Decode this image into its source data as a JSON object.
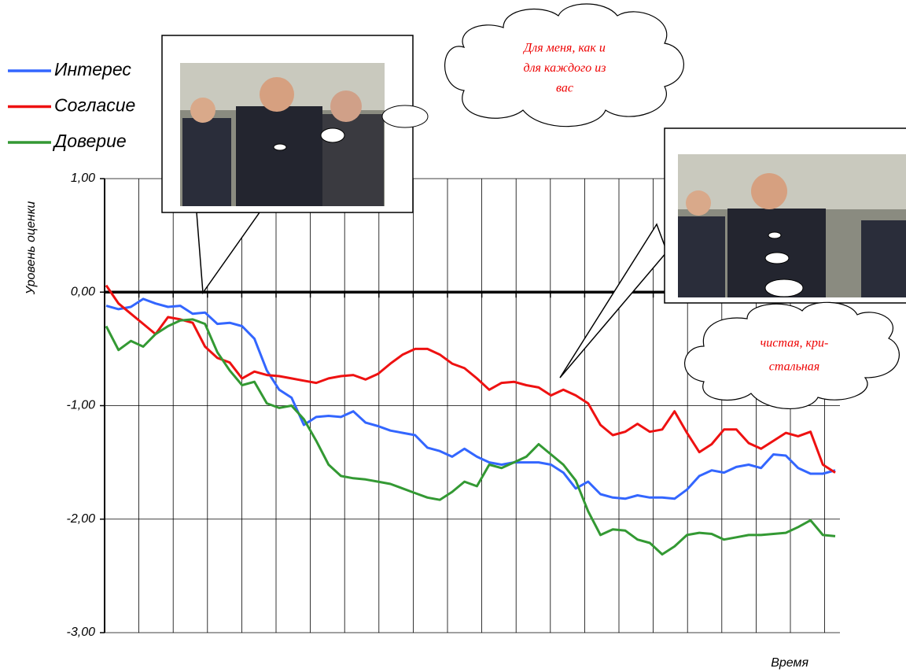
{
  "chart_data": {
    "type": "line",
    "y_label": "Уровень оценки",
    "x_label": "Время",
    "categories": [
      null,
      null,
      null,
      null,
      null,
      null,
      null,
      null,
      null,
      null,
      null,
      null,
      null,
      null,
      null,
      null,
      null,
      null,
      null,
      null,
      null,
      null,
      null,
      null,
      null,
      null,
      null,
      null,
      null,
      null,
      null,
      null,
      null,
      null,
      null,
      null,
      null,
      null,
      null,
      null,
      null,
      null,
      null,
      null,
      null,
      null,
      null,
      null,
      null,
      null,
      null,
      null,
      null,
      null,
      null,
      null,
      null,
      null,
      null,
      null
    ],
    "series": [
      {
        "name": "Интерес",
        "color": "#3366ff",
        "values": [
          -0.12,
          -0.15,
          -0.13,
          -0.06,
          -0.1,
          -0.13,
          -0.12,
          -0.19,
          -0.18,
          -0.28,
          -0.27,
          -0.3,
          -0.41,
          -0.69,
          -0.86,
          -0.93,
          -1.17,
          -1.1,
          -1.09,
          -1.1,
          -1.05,
          -1.15,
          -1.18,
          -1.22,
          -1.24,
          -1.26,
          -1.37,
          -1.4,
          -1.45,
          -1.38,
          -1.45,
          -1.5,
          -1.52,
          -1.5,
          -1.5,
          -1.5,
          -1.52,
          -1.59,
          -1.73,
          -1.67,
          -1.78,
          -1.81,
          -1.82,
          -1.79,
          -1.81,
          -1.81,
          -1.82,
          -1.74,
          -1.62,
          -1.57,
          -1.59,
          -1.54,
          -1.52,
          -1.55,
          -1.43,
          -1.44,
          -1.55,
          -1.6,
          -1.6,
          -1.57
        ]
      },
      {
        "name": "Согласие",
        "color": "#ee1111",
        "values": [
          0.06,
          -0.1,
          -0.19,
          -0.28,
          -0.37,
          -0.22,
          -0.24,
          -0.27,
          -0.48,
          -0.58,
          -0.62,
          -0.76,
          -0.7,
          -0.73,
          -0.74,
          -0.76,
          -0.78,
          -0.8,
          -0.76,
          -0.74,
          -0.73,
          -0.77,
          -0.72,
          -0.63,
          -0.55,
          -0.5,
          -0.5,
          -0.55,
          -0.63,
          -0.67,
          -0.76,
          -0.86,
          -0.8,
          -0.79,
          -0.82,
          -0.84,
          -0.91,
          -0.86,
          -0.91,
          -0.98,
          -1.17,
          -1.26,
          -1.23,
          -1.16,
          -1.23,
          -1.21,
          -1.05,
          -1.24,
          -1.41,
          -1.34,
          -1.21,
          -1.21,
          -1.33,
          -1.38,
          -1.31,
          -1.24,
          -1.27,
          -1.23,
          -1.52,
          -1.59
        ]
      },
      {
        "name": "Доверие",
        "color": "#339933",
        "values": [
          -0.3,
          -0.51,
          -0.43,
          -0.48,
          -0.37,
          -0.3,
          -0.25,
          -0.24,
          -0.28,
          -0.53,
          -0.69,
          -0.82,
          -0.79,
          -0.98,
          -1.02,
          -1.0,
          -1.12,
          -1.31,
          -1.52,
          -1.62,
          -1.64,
          -1.65,
          -1.67,
          -1.69,
          -1.73,
          -1.77,
          -1.81,
          -1.83,
          -1.76,
          -1.67,
          -1.71,
          -1.52,
          -1.55,
          -1.5,
          -1.45,
          -1.34,
          -1.43,
          -1.52,
          -1.66,
          -1.93,
          -2.14,
          -2.09,
          -2.1,
          -2.18,
          -2.21,
          -2.31,
          -2.24,
          -2.14,
          -2.12,
          -2.13,
          -2.18,
          -2.16,
          -2.14,
          -2.14,
          -2.13,
          -2.12,
          -2.07,
          -2.01,
          -2.14,
          -2.15
        ]
      }
    ],
    "ylim": [
      -3,
      1
    ],
    "yticks": [
      {
        "value": -3,
        "label": "-3,00"
      },
      {
        "value": -2,
        "label": "-2,00"
      },
      {
        "value": -1,
        "label": "-1,00"
      },
      {
        "value": 0,
        "label": "0,00"
      },
      {
        "value": 1,
        "label": "1,00"
      }
    ],
    "grid": true,
    "legend": "top-left",
    "annotations": [
      {
        "lines": [
          "Для меня, как и",
          "для каждого из",
          "вас"
        ]
      },
      {
        "lines": [
          "чистая, кри-",
          "стальная"
        ]
      }
    ]
  }
}
